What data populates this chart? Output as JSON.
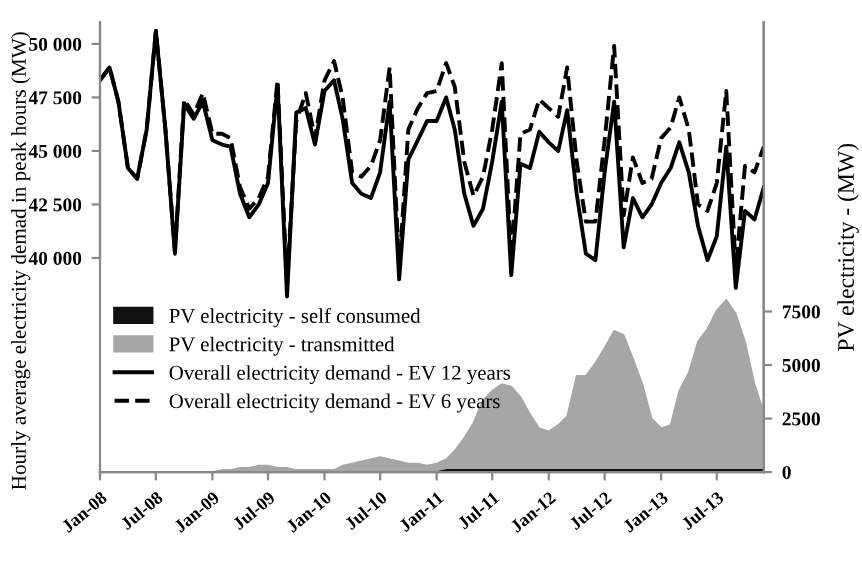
{
  "chart_data": {
    "type": "line",
    "ylabel": "Hourly average electricity demad in peak hours (MW)",
    "y2label": "PV electricity - (MW)",
    "x": [
      "2008-01",
      "2008-02",
      "2008-03",
      "2008-04",
      "2008-05",
      "2008-06",
      "2008-07",
      "2008-08",
      "2008-09",
      "2008-10",
      "2008-11",
      "2008-12",
      "2009-01",
      "2009-02",
      "2009-03",
      "2009-04",
      "2009-05",
      "2009-06",
      "2009-07",
      "2009-08",
      "2009-09",
      "2009-10",
      "2009-11",
      "2009-12",
      "2010-01",
      "2010-02",
      "2010-03",
      "2010-04",
      "2010-05",
      "2010-06",
      "2010-07",
      "2010-08",
      "2010-09",
      "2010-10",
      "2010-11",
      "2010-12",
      "2011-01",
      "2011-02",
      "2011-03",
      "2011-04",
      "2011-05",
      "2011-06",
      "2011-07",
      "2011-08",
      "2011-09",
      "2011-10",
      "2011-11",
      "2011-12",
      "2012-01",
      "2012-02",
      "2012-03",
      "2012-04",
      "2012-05",
      "2012-06",
      "2012-07",
      "2012-08",
      "2012-09",
      "2012-10",
      "2012-11",
      "2012-12",
      "2013-01",
      "2013-02",
      "2013-03",
      "2013-04",
      "2013-05",
      "2013-06",
      "2013-07",
      "2013-08",
      "2013-09",
      "2013-10",
      "2013-11",
      "2013-12"
    ],
    "series": [
      {
        "name": "PV electricity - self consumed",
        "type": "area",
        "axis": "y2",
        "color": "#111111",
        "values": [
          0,
          0,
          0,
          0,
          0,
          0,
          0,
          0,
          0,
          0,
          0,
          0,
          0,
          0,
          0,
          0,
          0,
          0,
          0,
          0,
          0,
          0,
          0,
          0,
          0,
          0,
          0,
          0,
          0,
          0,
          0,
          0,
          0,
          0,
          0,
          0,
          0,
          100,
          100,
          100,
          100,
          100,
          100,
          100,
          100,
          100,
          100,
          100,
          100,
          100,
          100,
          100,
          100,
          100,
          100,
          100,
          100,
          100,
          100,
          100,
          100,
          100,
          100,
          100,
          100,
          100,
          100,
          100,
          100,
          100,
          100,
          100
        ]
      },
      {
        "name": "PV electricity - transmitted",
        "type": "area",
        "axis": "y2",
        "color": "#a6a6a6",
        "values": [
          0,
          0,
          0,
          0,
          0,
          0,
          0,
          0,
          0,
          0,
          0,
          0,
          0,
          100,
          100,
          200,
          200,
          300,
          300,
          200,
          200,
          100,
          100,
          100,
          100,
          100,
          300,
          400,
          500,
          600,
          700,
          600,
          500,
          400,
          400,
          300,
          400,
          500,
          900,
          1500,
          2200,
          3250,
          3700,
          4000,
          3900,
          3400,
          2600,
          1950,
          1800,
          2100,
          2500,
          4400,
          4400,
          5000,
          5700,
          6500,
          6300,
          5200,
          4000,
          2400,
          1950,
          2100,
          3700,
          4550,
          6000,
          6600,
          7450,
          7950,
          7300,
          6000,
          4000,
          2700
        ]
      },
      {
        "name": "Overall electricity demand - EV 12 years",
        "line_style": "solid",
        "color": "#000000",
        "values": [
          48300,
          48900,
          47300,
          44200,
          43700,
          46000,
          50600,
          46000,
          40200,
          47200,
          46500,
          47300,
          45500,
          45300,
          45200,
          43000,
          41900,
          42500,
          43500,
          48100,
          38200,
          46800,
          47000,
          45300,
          47800,
          48300,
          46500,
          43500,
          43000,
          42800,
          44000,
          47300,
          39000,
          44600,
          45500,
          46400,
          46400,
          47500,
          46000,
          43000,
          41500,
          42300,
          44500,
          47300,
          39200,
          44400,
          44200,
          45900,
          45400,
          45000,
          46900,
          43000,
          40200,
          39900,
          44000,
          47300,
          40500,
          42800,
          41900,
          42500,
          43500,
          44200,
          45400,
          44000,
          41500,
          39900,
          41000,
          45200,
          38600,
          42200,
          41800,
          43300
        ]
      },
      {
        "name": "Overall electricity demand - EV 6 years",
        "line_style": "dashed",
        "color": "#000000",
        "values": [
          48300,
          48900,
          47300,
          44200,
          43700,
          46000,
          50600,
          46000,
          40300,
          47400,
          46700,
          47700,
          45800,
          45800,
          45600,
          43300,
          42300,
          42800,
          43800,
          48300,
          38800,
          46400,
          47700,
          45600,
          48300,
          49200,
          47500,
          44000,
          43800,
          44300,
          45500,
          48900,
          39500,
          46000,
          47000,
          47700,
          47800,
          49100,
          48000,
          44500,
          42900,
          43800,
          46000,
          49100,
          40000,
          45800,
          46000,
          47400,
          47000,
          46600,
          48900,
          44500,
          41700,
          41700,
          45500,
          49900,
          42000,
          44700,
          43500,
          43700,
          45600,
          46100,
          47500,
          46000,
          42500,
          42200,
          43500,
          47800,
          39500,
          44300,
          44000,
          45200
        ]
      }
    ],
    "stacked": true,
    "xlim": [
      "2008-01",
      "2013-12"
    ],
    "xticks": [
      {
        "value": "2008-01",
        "label": "Jan-08"
      },
      {
        "value": "2008-07",
        "label": "Jul-08"
      },
      {
        "value": "2009-01",
        "label": "Jan-09"
      },
      {
        "value": "2009-07",
        "label": "Jul-09"
      },
      {
        "value": "2010-01",
        "label": "Jan-10"
      },
      {
        "value": "2010-07",
        "label": "Jul-10"
      },
      {
        "value": "2011-01",
        "label": "Jan-11"
      },
      {
        "value": "2011-07",
        "label": "Jul-11"
      },
      {
        "value": "2012-01",
        "label": "Jan-12"
      },
      {
        "value": "2012-07",
        "label": "Jul-12"
      },
      {
        "value": "2013-01",
        "label": "Jan-13"
      },
      {
        "value": "2013-07",
        "label": "Jul-13"
      }
    ],
    "ylim": [
      30000,
      51000
    ],
    "yticks": [
      {
        "value": 40000,
        "label": "40 000"
      },
      {
        "value": 42500,
        "label": "42 500"
      },
      {
        "value": 45000,
        "label": "45 000"
      },
      {
        "value": 47500,
        "label": "47 500"
      },
      {
        "value": 50000,
        "label": "50 000"
      }
    ],
    "y2lim": [
      0,
      21000
    ],
    "y2ticks": [
      0,
      2500,
      5000,
      7500
    ],
    "legend": "lower left",
    "grid": false
  }
}
